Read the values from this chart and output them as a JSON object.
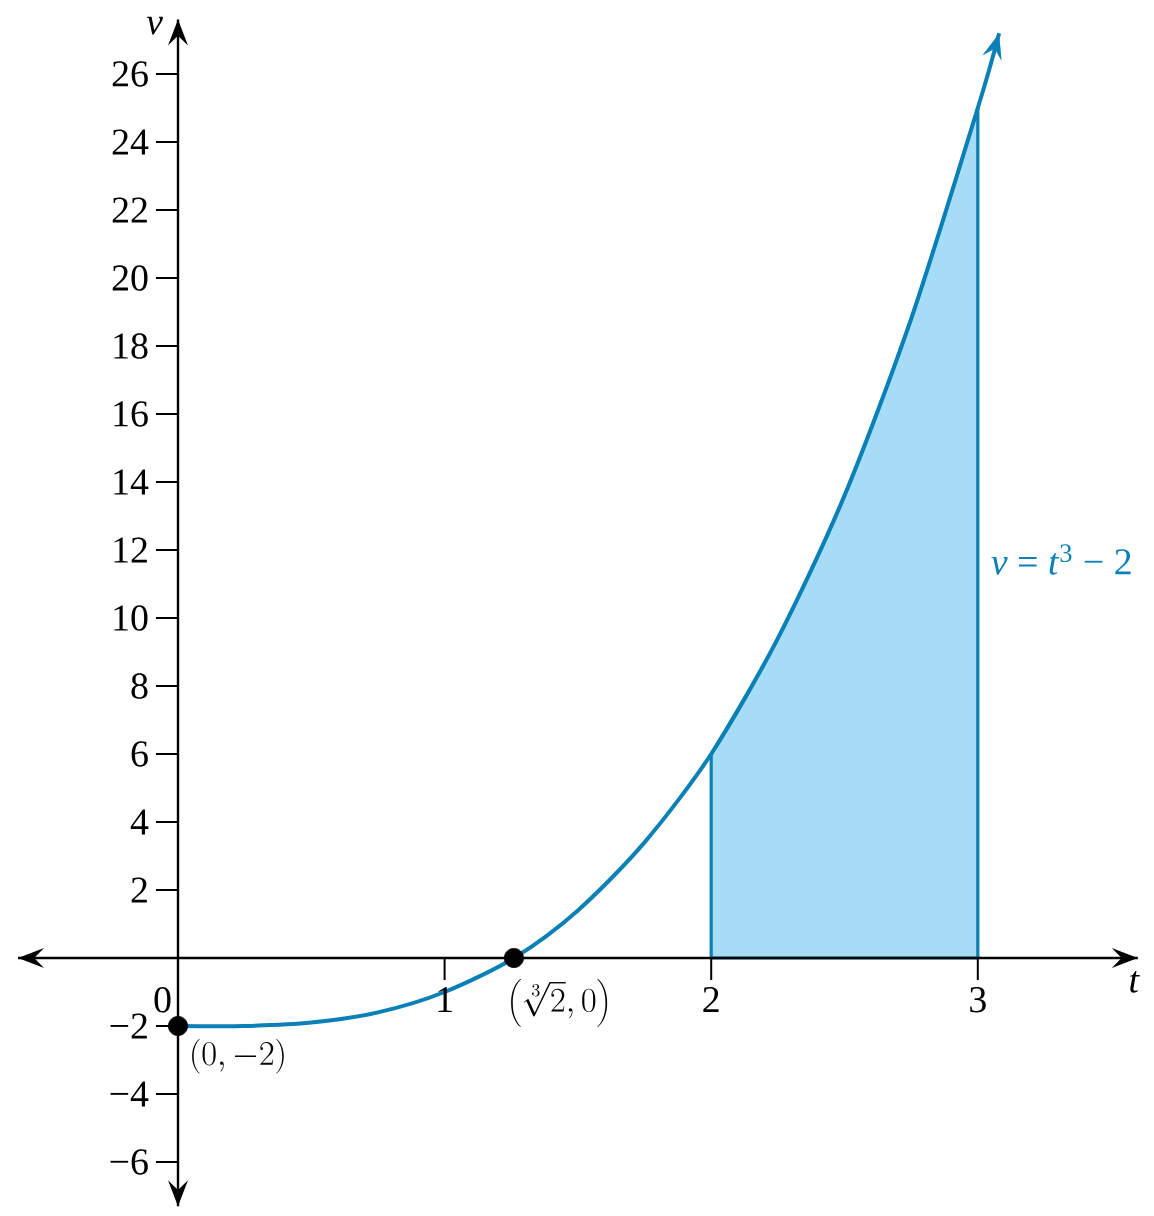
{
  "chart_data": {
    "type": "line",
    "xlabel": "t",
    "ylabel": "v",
    "xlim": [
      -0.6,
      3.6
    ],
    "ylim": [
      -7.3,
      27.6
    ],
    "xticks": [
      0,
      1,
      2,
      3
    ],
    "yticks": [
      {
        "value": -6,
        "label": "−6"
      },
      {
        "value": -4,
        "label": "−4"
      },
      {
        "value": -2,
        "label": "−2"
      },
      2,
      4,
      6,
      8,
      10,
      12,
      14,
      16,
      18,
      20,
      22,
      24,
      26
    ],
    "series": [
      {
        "type": "area",
        "color": "#a6dcf6",
        "x": [
          2,
          2.25,
          2.5,
          2.75,
          3
        ],
        "values": [
          6,
          9.4,
          13.6,
          18.8,
          25
        ]
      },
      {
        "name": "*v* = *t*$^{3}$ − 2",
        "color": "#0a80b6",
        "x": [
          0,
          0.25,
          0.5,
          0.75,
          1,
          1.26,
          1.5,
          1.75,
          2,
          2.25,
          2.5,
          2.75,
          3,
          3.08
        ],
        "values": [
          -2,
          -2,
          -1.9,
          -1.6,
          -1,
          0,
          1.4,
          3.4,
          6,
          9.4,
          13.6,
          18.8,
          25,
          27.2
        ]
      },
      {
        "type": "scatter",
        "color": "#000000",
        "marker": "circle",
        "x": [
          0,
          1.26
        ],
        "values": [
          -2,
          0
        ]
      }
    ],
    "annotations": [
      {
        "text": "(0, -2)",
        "x": 0,
        "y": -2
      },
      {
        "text": "\\left(\\sqrt[3]{2}, 0\\right)",
        "x": 1.26,
        "y": 0
      }
    ],
    "grid": false
  }
}
